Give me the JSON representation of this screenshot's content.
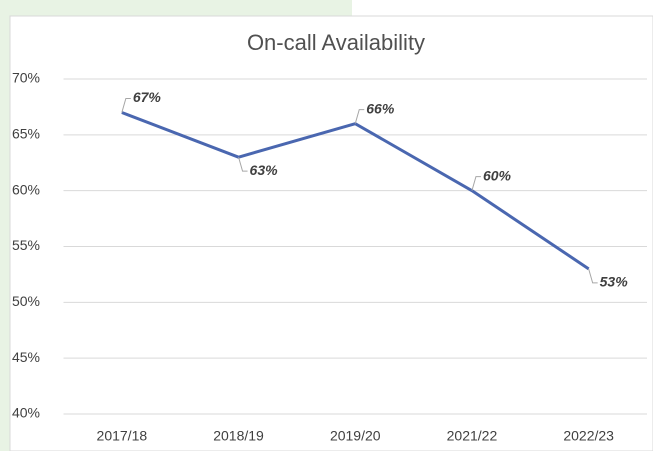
{
  "chart_data": {
    "type": "line",
    "title": "On-call Availability",
    "categories": [
      "2017/18",
      "2018/19",
      "2019/20",
      "2021/22",
      "2022/23"
    ],
    "series": [
      {
        "name": "On-call Availability",
        "color": "#4a67b0",
        "values": [
          67,
          63,
          66,
          60,
          53
        ],
        "value_labels": [
          "67%",
          "63%",
          "66%",
          "60%",
          "53%"
        ]
      }
    ],
    "ylim": [
      40,
      70
    ],
    "yticks": [
      {
        "value": 40,
        "label": "40%"
      },
      {
        "value": 45,
        "label": "45%"
      },
      {
        "value": 50,
        "label": "50%"
      },
      {
        "value": 55,
        "label": "55%"
      },
      {
        "value": 60,
        "label": "60%"
      },
      {
        "value": 65,
        "label": "65%"
      },
      {
        "value": 70,
        "label": "70%"
      }
    ],
    "grid": true,
    "legend": false
  }
}
